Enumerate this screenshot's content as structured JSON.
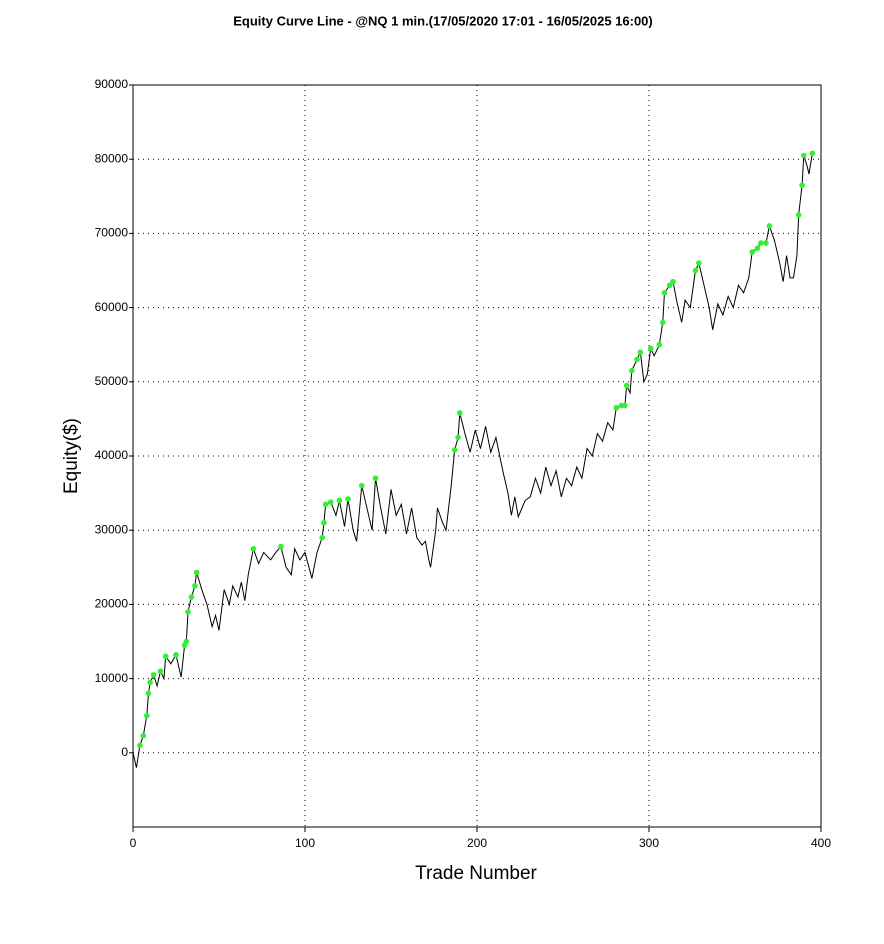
{
  "chart_data": {
    "type": "line",
    "title": "Equity Curve Line - @NQ 1 min.(17/05/2020 17:01 - 16/05/2025 16:00)",
    "x_label": "Trade Number",
    "y_label": "Equity($)",
    "xlim": [
      0,
      400
    ],
    "xticks": [
      0,
      100,
      200,
      300,
      400
    ],
    "ylim": [
      -10000,
      90000
    ],
    "yticks": [
      0,
      10000,
      20000,
      30000,
      40000,
      50000,
      60000,
      70000,
      80000,
      90000
    ],
    "grid": true,
    "series": [
      {
        "color": "#000000",
        "style": "line",
        "x": [
          0,
          2,
          4,
          6,
          8,
          9,
          10,
          12,
          14,
          16,
          18,
          19,
          22,
          25,
          28,
          30,
          31,
          32,
          34,
          36,
          37,
          40,
          43,
          46,
          48,
          50,
          53,
          56,
          58,
          61,
          63,
          65,
          67,
          70,
          73,
          76,
          80,
          83,
          86,
          89,
          92,
          94,
          97,
          100,
          104,
          107,
          110,
          111,
          112,
          115,
          118,
          120,
          123,
          125,
          128,
          130,
          133,
          136,
          139,
          141,
          144,
          147,
          150,
          153,
          156,
          159,
          162,
          165,
          168,
          170,
          172,
          173,
          176,
          177,
          180,
          182,
          185,
          187,
          189,
          190,
          193,
          196,
          199,
          202,
          205,
          208,
          211,
          215,
          218,
          220,
          222,
          224,
          228,
          231,
          234,
          237,
          240,
          243,
          246,
          249,
          252,
          255,
          258,
          261,
          264,
          267,
          270,
          273,
          276,
          279,
          281,
          284,
          286,
          287,
          289,
          290,
          293,
          295,
          297,
          299,
          301,
          303,
          306,
          308,
          309,
          312,
          314,
          316,
          319,
          321,
          324,
          327,
          329,
          332,
          335,
          337,
          340,
          343,
          346,
          349,
          352,
          355,
          358,
          360,
          363,
          365,
          368,
          370,
          373,
          376,
          378,
          380,
          382,
          384,
          386,
          387,
          389,
          390,
          392,
          393,
          395
        ],
        "values": [
          0,
          -2000,
          1000,
          2300,
          5000,
          8000,
          9500,
          10500,
          9000,
          11000,
          10000,
          13000,
          12000,
          13200,
          10200,
          14500,
          15000,
          19000,
          21000,
          22500,
          24300,
          22000,
          20000,
          17000,
          18500,
          16500,
          22000,
          20000,
          22500,
          21000,
          23000,
          20500,
          24000,
          27500,
          25500,
          27000,
          26000,
          27000,
          27800,
          25000,
          24000,
          27500,
          26000,
          27000,
          23500,
          27000,
          29000,
          31000,
          33500,
          33800,
          32000,
          34000,
          30500,
          34200,
          30000,
          28500,
          36000,
          33000,
          30000,
          37000,
          33000,
          29500,
          35500,
          32000,
          33500,
          29500,
          33000,
          29000,
          28000,
          28500,
          26000,
          25000,
          30000,
          33000,
          31000,
          30000,
          36000,
          40800,
          42500,
          45800,
          43000,
          40500,
          43500,
          41000,
          44000,
          40500,
          42500,
          38000,
          35000,
          32000,
          34500,
          31800,
          34000,
          34500,
          37000,
          35000,
          38500,
          36000,
          38000,
          34500,
          37000,
          36000,
          38500,
          37000,
          41000,
          40000,
          43000,
          42000,
          44500,
          43500,
          46500,
          46800,
          46800,
          49500,
          48500,
          51500,
          53000,
          54000,
          50000,
          51000,
          54500,
          53500,
          55000,
          58000,
          62000,
          63000,
          63500,
          61000,
          58000,
          61000,
          60000,
          65000,
          66000,
          63000,
          60000,
          57000,
          60500,
          59000,
          61500,
          60000,
          63000,
          62000,
          64000,
          67500,
          68000,
          68700,
          68700,
          71000,
          69000,
          66000,
          63500,
          67000,
          64000,
          64000,
          67000,
          72500,
          76500,
          80500,
          79000,
          78000,
          80800
        ]
      },
      {
        "color": "#33ee33",
        "style": "markers",
        "x": [
          4,
          6,
          8,
          9,
          10,
          12,
          16,
          19,
          25,
          30,
          31,
          32,
          34,
          36,
          37,
          70,
          86,
          110,
          111,
          112,
          115,
          120,
          125,
          133,
          141,
          187,
          189,
          190,
          281,
          284,
          286,
          287,
          290,
          293,
          295,
          301,
          306,
          308,
          309,
          312,
          314,
          327,
          329,
          360,
          363,
          365,
          368,
          370,
          387,
          389,
          390,
          395
        ],
        "values": [
          1000,
          2300,
          5000,
          8000,
          9500,
          10500,
          11000,
          13000,
          13200,
          14500,
          15000,
          19000,
          21000,
          22500,
          24300,
          27500,
          27800,
          29000,
          31000,
          33500,
          33800,
          34000,
          34200,
          36000,
          37000,
          40800,
          42500,
          45800,
          46500,
          46800,
          46800,
          49500,
          51500,
          53000,
          54000,
          54500,
          55000,
          58000,
          62000,
          63000,
          63500,
          65000,
          66000,
          67500,
          68000,
          68700,
          68700,
          71000,
          72500,
          76500,
          80500,
          80800
        ]
      }
    ]
  }
}
